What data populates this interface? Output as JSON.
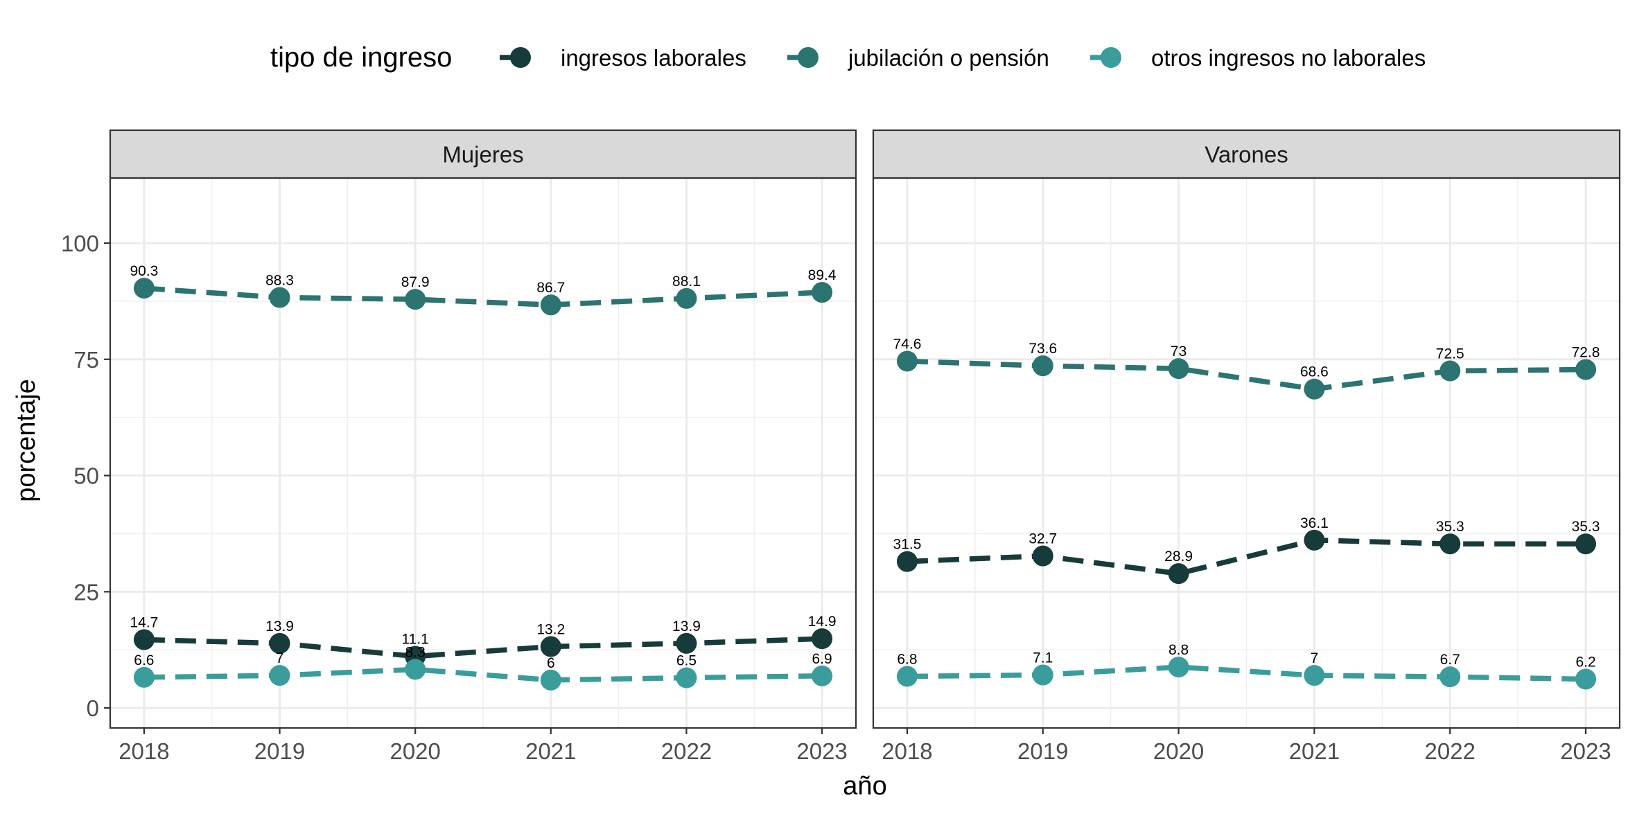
{
  "chart_data": {
    "type": "line",
    "xlabel": "año",
    "ylabel": "porcentaje",
    "ylim": [
      -4.3,
      114
    ],
    "yticks": [
      0,
      25,
      50,
      75,
      100
    ],
    "x": [
      2018,
      2019,
      2020,
      2021,
      2022,
      2023
    ],
    "grid": true,
    "legend": {
      "title": "tipo de ingreso",
      "placement": "top"
    },
    "series_style": [
      {
        "name": "ingresos laborales",
        "color": "#173b3a"
      },
      {
        "name": "jubilación o pensión",
        "color": "#2b7471"
      },
      {
        "name": "otros ingresos no laborales",
        "color": "#3a9d9b"
      }
    ],
    "panels": [
      {
        "title": "Mujeres",
        "series": [
          {
            "name": "ingresos laborales",
            "values": [
              14.7,
              13.9,
              11.1,
              13.2,
              13.9,
              14.9
            ]
          },
          {
            "name": "jubilación o pensión",
            "values": [
              90.3,
              88.3,
              87.9,
              86.7,
              88.1,
              89.4
            ]
          },
          {
            "name": "otros ingresos no laborales",
            "values": [
              6.6,
              7,
              8.3,
              6,
              6.5,
              6.9
            ]
          }
        ]
      },
      {
        "title": "Varones",
        "series": [
          {
            "name": "ingresos laborales",
            "values": [
              31.5,
              32.7,
              28.9,
              36.1,
              35.3,
              35.3
            ]
          },
          {
            "name": "jubilación o pensión",
            "values": [
              74.6,
              73.6,
              73,
              68.6,
              72.5,
              72.8
            ]
          },
          {
            "name": "otros ingresos no laborales",
            "values": [
              6.8,
              7.1,
              8.8,
              7,
              6.7,
              6.2
            ]
          }
        ]
      }
    ]
  }
}
